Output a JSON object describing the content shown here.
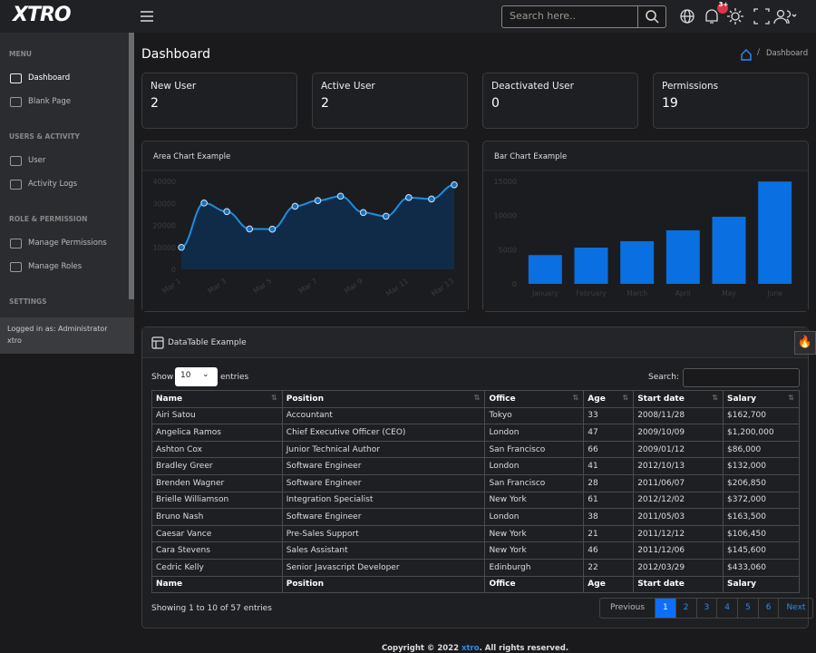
{
  "brand": "XTRO",
  "topbar": {
    "search_placeholder": "Search here..",
    "notification_badge": "3+"
  },
  "sidebar": {
    "sections": [
      {
        "heading": "MENU",
        "items": [
          "Dashboard",
          "Blank Page"
        ]
      },
      {
        "heading": "USERS & ACTIVITY",
        "items": [
          "User",
          "Activity Logs"
        ]
      },
      {
        "heading": "ROLE & PERMISSION",
        "items": [
          "Manage Permissions",
          "Manage Roles"
        ]
      },
      {
        "heading": "SETTINGS",
        "items": []
      }
    ],
    "footer": {
      "label": "Logged in as: Administrator",
      "user": "xtro"
    }
  },
  "page": {
    "title": "Dashboard",
    "breadcrumb": "Dashboard"
  },
  "cards": [
    {
      "label": "New User",
      "value": "2",
      "color": "#dc3545"
    },
    {
      "label": "Active User",
      "value": "2",
      "color": "#0d8bf0"
    },
    {
      "label": "Deactivated User",
      "value": "0",
      "color": "#7cb518"
    },
    {
      "label": "Permissions",
      "value": "19",
      "color": "#e0b000"
    }
  ],
  "chart_data": [
    {
      "type": "area",
      "title": "Area Chart Example",
      "categories": [
        "Mar 1",
        null,
        "Mar 3",
        null,
        "Mar 5",
        null,
        "Mar 7",
        null,
        "Mar 9",
        null,
        "Mar 11",
        null,
        "Mar 13"
      ],
      "values": [
        10000,
        30162,
        26263,
        18394,
        18287,
        28682,
        31274,
        33259,
        25849,
        24159,
        32651,
        31984,
        38451
      ],
      "color": "#1a8fe0",
      "ylim": [
        0,
        40000
      ],
      "yticks": [
        0,
        10000,
        20000,
        30000,
        40000
      ]
    },
    {
      "type": "bar",
      "title": "Bar Chart Example",
      "categories": [
        "January",
        "February",
        "March",
        "April",
        "May",
        "June"
      ],
      "values": [
        4215,
        5312,
        6251,
        7841,
        9821,
        14984
      ],
      "color": "#0a6fe0",
      "ylim": [
        0,
        15000
      ],
      "yticks": [
        0,
        5000,
        10000,
        15000
      ]
    }
  ],
  "table": {
    "title": "DataTable Example",
    "show": "Show",
    "length": 10,
    "entries": "entries",
    "search": "Search:",
    "columns": [
      "Name",
      "Position",
      "Office",
      "Age",
      "Start date",
      "Salary"
    ],
    "rows": [
      [
        "Airi Satou",
        "Accountant",
        "Tokyo",
        "33",
        "2008/11/28",
        "$162,700"
      ],
      [
        "Angelica Ramos",
        "Chief Executive Officer (CEO)",
        "London",
        "47",
        "2009/10/09",
        "$1,200,000"
      ],
      [
        "Ashton Cox",
        "Junior Technical Author",
        "San Francisco",
        "66",
        "2009/01/12",
        "$86,000"
      ],
      [
        "Bradley Greer",
        "Software Engineer",
        "London",
        "41",
        "2012/10/13",
        "$132,000"
      ],
      [
        "Brenden Wagner",
        "Software Engineer",
        "San Francisco",
        "28",
        "2011/06/07",
        "$206,850"
      ],
      [
        "Brielle Williamson",
        "Integration Specialist",
        "New York",
        "61",
        "2012/12/02",
        "$372,000"
      ],
      [
        "Bruno Nash",
        "Software Engineer",
        "London",
        "38",
        "2011/05/03",
        "$163,500"
      ],
      [
        "Caesar Vance",
        "Pre-Sales Support",
        "New York",
        "21",
        "2011/12/12",
        "$106,450"
      ],
      [
        "Cara Stevens",
        "Sales Assistant",
        "New York",
        "46",
        "2011/12/06",
        "$145,600"
      ],
      [
        "Cedric Kelly",
        "Senior Javascript Developer",
        "Edinburgh",
        "22",
        "2012/03/29",
        "$433,060"
      ]
    ],
    "info": "Showing 1 to 10 of 57 entries",
    "previous": "Previous",
    "pages": [
      1,
      2,
      3,
      4,
      5,
      6
    ],
    "next": "Next"
  },
  "footer": {
    "prefix": "Copyright © 2022",
    "link": "xtro",
    "suffix": ". All rights reserved."
  }
}
